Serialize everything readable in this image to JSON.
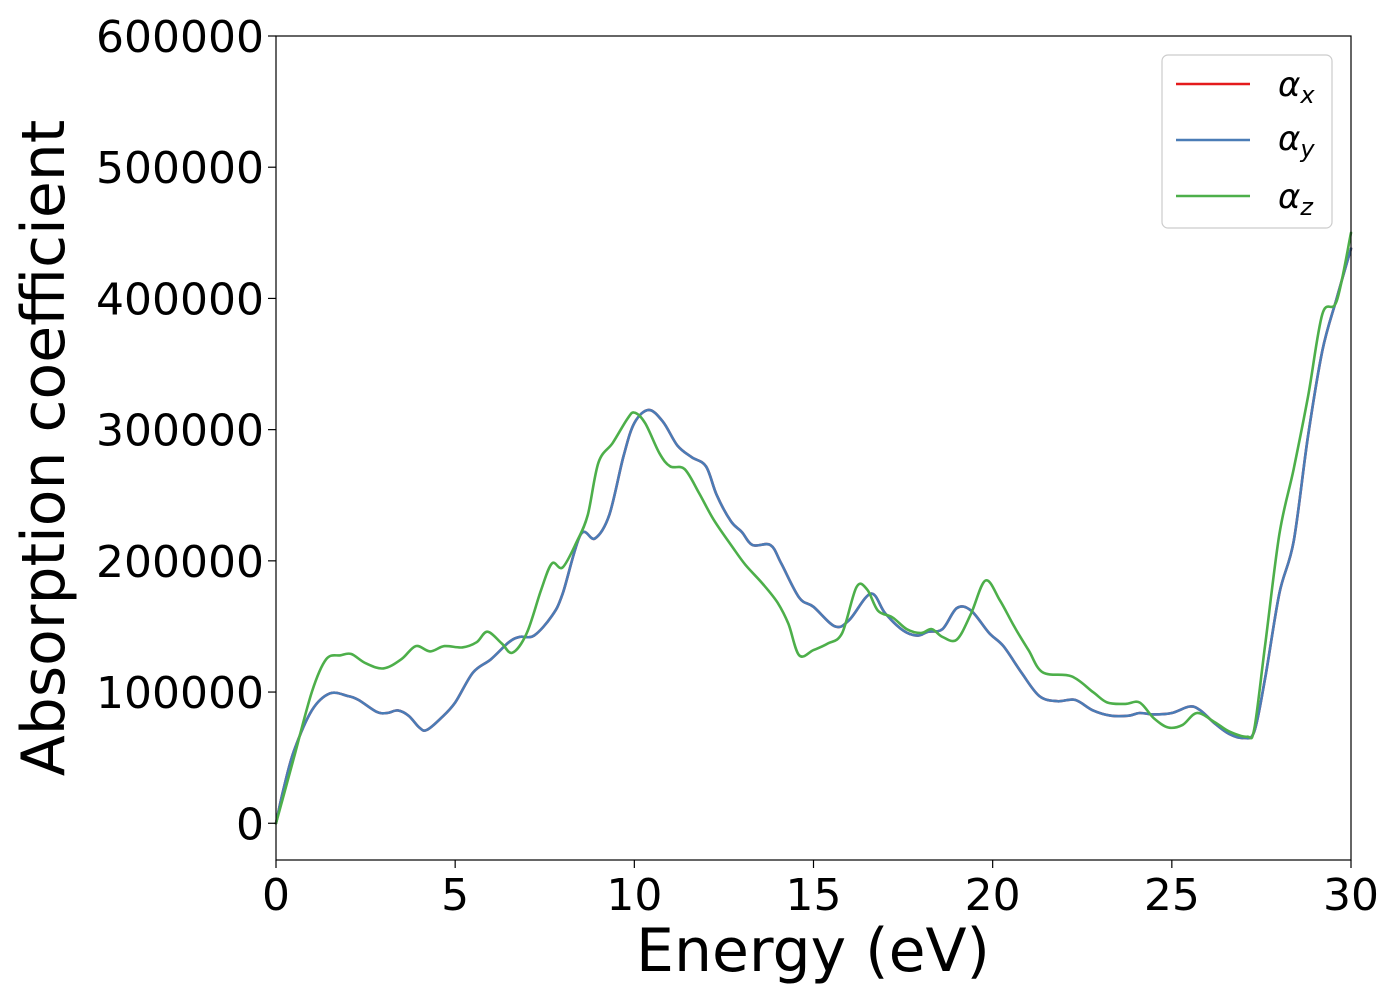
{
  "chart_data": {
    "type": "line",
    "title": "",
    "xlabel": "Energy (eV)",
    "ylabel": "Absorption coefficient",
    "xlim": [
      0,
      30
    ],
    "ylim": [
      -28000,
      600000
    ],
    "xticks": [
      0,
      5,
      10,
      15,
      20,
      25,
      30
    ],
    "yticks": [
      0,
      100000,
      200000,
      300000,
      400000,
      500000,
      600000
    ],
    "xtick_labels": [
      "0",
      "5",
      "10",
      "15",
      "20",
      "25",
      "30"
    ],
    "ytick_labels": [
      "0",
      "100000",
      "200000",
      "300000",
      "400000",
      "500000",
      "600000"
    ],
    "grid": false,
    "legend_position": "top-right",
    "series": [
      {
        "name": "α",
        "subscript": "x",
        "color": "#e41a1c",
        "points": [
          [
            0,
            0
          ],
          [
            0.2,
            25000
          ],
          [
            0.5,
            55000
          ],
          [
            1.0,
            86000
          ],
          [
            1.5,
            99000
          ],
          [
            2.0,
            97000
          ],
          [
            2.3,
            94000
          ],
          [
            2.8,
            85000
          ],
          [
            3.1,
            84000
          ],
          [
            3.4,
            86000
          ],
          [
            3.7,
            82000
          ],
          [
            4.0,
            73000
          ],
          [
            4.2,
            71000
          ],
          [
            4.6,
            80000
          ],
          [
            5.0,
            92000
          ],
          [
            5.5,
            115000
          ],
          [
            6.0,
            125000
          ],
          [
            6.5,
            138000
          ],
          [
            6.8,
            142000
          ],
          [
            7.2,
            143000
          ],
          [
            7.7,
            158000
          ],
          [
            8.0,
            175000
          ],
          [
            8.5,
            220000
          ],
          [
            8.9,
            217000
          ],
          [
            9.3,
            235000
          ],
          [
            9.7,
            280000
          ],
          [
            10.0,
            305000
          ],
          [
            10.4,
            315000
          ],
          [
            10.8,
            306000
          ],
          [
            11.2,
            288000
          ],
          [
            11.6,
            279000
          ],
          [
            12.0,
            272000
          ],
          [
            12.3,
            250000
          ],
          [
            12.7,
            230000
          ],
          [
            13.0,
            222000
          ],
          [
            13.3,
            212000
          ],
          [
            13.8,
            212000
          ],
          [
            14.1,
            198000
          ],
          [
            14.6,
            172000
          ],
          [
            15.0,
            165000
          ],
          [
            15.6,
            150000
          ],
          [
            16.0,
            155000
          ],
          [
            16.6,
            175000
          ],
          [
            17.0,
            160000
          ],
          [
            17.5,
            147000
          ],
          [
            17.9,
            143000
          ],
          [
            18.2,
            146000
          ],
          [
            18.6,
            148000
          ],
          [
            19.0,
            164000
          ],
          [
            19.4,
            162000
          ],
          [
            19.9,
            145000
          ],
          [
            20.3,
            135000
          ],
          [
            20.8,
            115000
          ],
          [
            21.3,
            97000
          ],
          [
            21.8,
            93000
          ],
          [
            22.3,
            94000
          ],
          [
            22.8,
            86000
          ],
          [
            23.3,
            82000
          ],
          [
            23.8,
            82000
          ],
          [
            24.1,
            84000
          ],
          [
            24.5,
            83000
          ],
          [
            25.0,
            84000
          ],
          [
            25.5,
            89000
          ],
          [
            25.8,
            86000
          ],
          [
            26.2,
            76000
          ],
          [
            26.6,
            68000
          ],
          [
            27.0,
            65000
          ],
          [
            27.3,
            70000
          ],
          [
            27.6,
            110000
          ],
          [
            28.0,
            175000
          ],
          [
            28.4,
            215000
          ],
          [
            28.8,
            295000
          ],
          [
            29.2,
            360000
          ],
          [
            29.6,
            400000
          ],
          [
            30.0,
            438000
          ]
        ]
      },
      {
        "name": "α",
        "subscript": "y",
        "color": "#4a7cb6",
        "points": [
          [
            0,
            0
          ],
          [
            0.2,
            25000
          ],
          [
            0.5,
            55000
          ],
          [
            1.0,
            86000
          ],
          [
            1.5,
            99000
          ],
          [
            2.0,
            97000
          ],
          [
            2.3,
            94000
          ],
          [
            2.8,
            85000
          ],
          [
            3.1,
            84000
          ],
          [
            3.4,
            86000
          ],
          [
            3.7,
            82000
          ],
          [
            4.0,
            73000
          ],
          [
            4.2,
            71000
          ],
          [
            4.6,
            80000
          ],
          [
            5.0,
            92000
          ],
          [
            5.5,
            115000
          ],
          [
            6.0,
            125000
          ],
          [
            6.5,
            138000
          ],
          [
            6.8,
            142000
          ],
          [
            7.2,
            143000
          ],
          [
            7.7,
            158000
          ],
          [
            8.0,
            175000
          ],
          [
            8.5,
            220000
          ],
          [
            8.9,
            217000
          ],
          [
            9.3,
            235000
          ],
          [
            9.7,
            280000
          ],
          [
            10.0,
            305000
          ],
          [
            10.4,
            315000
          ],
          [
            10.8,
            306000
          ],
          [
            11.2,
            288000
          ],
          [
            11.6,
            279000
          ],
          [
            12.0,
            272000
          ],
          [
            12.3,
            250000
          ],
          [
            12.7,
            230000
          ],
          [
            13.0,
            222000
          ],
          [
            13.3,
            212000
          ],
          [
            13.8,
            212000
          ],
          [
            14.1,
            198000
          ],
          [
            14.6,
            172000
          ],
          [
            15.0,
            165000
          ],
          [
            15.6,
            150000
          ],
          [
            16.0,
            155000
          ],
          [
            16.6,
            175000
          ],
          [
            17.0,
            160000
          ],
          [
            17.5,
            147000
          ],
          [
            17.9,
            143000
          ],
          [
            18.2,
            146000
          ],
          [
            18.6,
            148000
          ],
          [
            19.0,
            164000
          ],
          [
            19.4,
            162000
          ],
          [
            19.9,
            145000
          ],
          [
            20.3,
            135000
          ],
          [
            20.8,
            115000
          ],
          [
            21.3,
            97000
          ],
          [
            21.8,
            93000
          ],
          [
            22.3,
            94000
          ],
          [
            22.8,
            86000
          ],
          [
            23.3,
            82000
          ],
          [
            23.8,
            82000
          ],
          [
            24.1,
            84000
          ],
          [
            24.5,
            83000
          ],
          [
            25.0,
            84000
          ],
          [
            25.5,
            89000
          ],
          [
            25.8,
            86000
          ],
          [
            26.2,
            76000
          ],
          [
            26.6,
            68000
          ],
          [
            27.0,
            65000
          ],
          [
            27.3,
            70000
          ],
          [
            27.6,
            110000
          ],
          [
            28.0,
            175000
          ],
          [
            28.4,
            215000
          ],
          [
            28.8,
            295000
          ],
          [
            29.2,
            360000
          ],
          [
            29.6,
            400000
          ],
          [
            30.0,
            438000
          ]
        ]
      },
      {
        "name": "α",
        "subscript": "z",
        "color": "#4daf4a",
        "points": [
          [
            0,
            0
          ],
          [
            0.2,
            20000
          ],
          [
            0.5,
            50000
          ],
          [
            1.0,
            100000
          ],
          [
            1.4,
            125000
          ],
          [
            1.8,
            128000
          ],
          [
            2.1,
            129000
          ],
          [
            2.5,
            122000
          ],
          [
            3.0,
            118000
          ],
          [
            3.5,
            125000
          ],
          [
            3.9,
            135000
          ],
          [
            4.3,
            131000
          ],
          [
            4.7,
            135000
          ],
          [
            5.2,
            134000
          ],
          [
            5.6,
            138000
          ],
          [
            5.9,
            146000
          ],
          [
            6.3,
            137000
          ],
          [
            6.6,
            130000
          ],
          [
            7.0,
            145000
          ],
          [
            7.4,
            178000
          ],
          [
            7.7,
            198000
          ],
          [
            8.0,
            195000
          ],
          [
            8.4,
            215000
          ],
          [
            8.7,
            235000
          ],
          [
            9.0,
            275000
          ],
          [
            9.4,
            290000
          ],
          [
            9.8,
            308000
          ],
          [
            10.0,
            313000
          ],
          [
            10.3,
            305000
          ],
          [
            10.7,
            282000
          ],
          [
            11.0,
            272000
          ],
          [
            11.4,
            270000
          ],
          [
            11.8,
            252000
          ],
          [
            12.2,
            232000
          ],
          [
            12.7,
            212000
          ],
          [
            13.1,
            197000
          ],
          [
            13.6,
            182000
          ],
          [
            14.0,
            168000
          ],
          [
            14.3,
            152000
          ],
          [
            14.6,
            128000
          ],
          [
            15.0,
            132000
          ],
          [
            15.4,
            137000
          ],
          [
            15.8,
            145000
          ],
          [
            16.2,
            180000
          ],
          [
            16.5,
            178000
          ],
          [
            16.8,
            162000
          ],
          [
            17.2,
            157000
          ],
          [
            17.6,
            148000
          ],
          [
            18.0,
            145000
          ],
          [
            18.3,
            148000
          ],
          [
            18.6,
            142000
          ],
          [
            19.0,
            140000
          ],
          [
            19.4,
            160000
          ],
          [
            19.8,
            185000
          ],
          [
            20.2,
            170000
          ],
          [
            20.6,
            150000
          ],
          [
            21.0,
            132000
          ],
          [
            21.4,
            115000
          ],
          [
            22.2,
            112000
          ],
          [
            22.8,
            100000
          ],
          [
            23.2,
            92000
          ],
          [
            23.7,
            91000
          ],
          [
            24.1,
            92000
          ],
          [
            24.5,
            80000
          ],
          [
            24.9,
            73000
          ],
          [
            25.3,
            75000
          ],
          [
            25.7,
            84000
          ],
          [
            26.2,
            77000
          ],
          [
            26.6,
            70000
          ],
          [
            27.1,
            66000
          ],
          [
            27.3,
            72000
          ],
          [
            27.6,
            135000
          ],
          [
            28.0,
            220000
          ],
          [
            28.4,
            270000
          ],
          [
            28.8,
            325000
          ],
          [
            29.2,
            388000
          ],
          [
            29.6,
            398000
          ],
          [
            30.0,
            450000
          ]
        ]
      }
    ]
  }
}
